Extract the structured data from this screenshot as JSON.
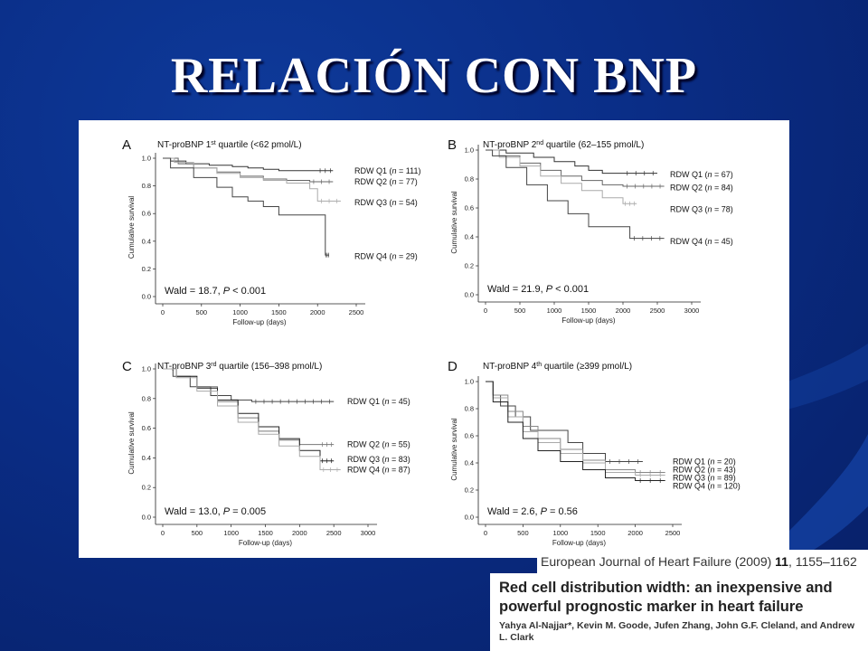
{
  "slide": {
    "title": "RELACIÓN CON BNP",
    "accent": "#0a2d86"
  },
  "citation": {
    "journal_name": "European Journal of Heart Failure",
    "journal_year": "(2009)",
    "journal_volume": "11",
    "journal_pages": ", 1155–1162",
    "paper_title": "Red cell distribution width: an inexpensive and powerful prognostic marker in heart failure",
    "authors": "Yahya Al-Najjar*, Kevin M. Goode, Jufen Zhang, John G.F. Cleland, and Andrew L. Clark"
  },
  "chart_data": [
    {
      "type": "line",
      "panel": "A",
      "title": "NT-proBNP 1st quartile (<62 pmol/L)",
      "title_parts": [
        "NT-proBNP 1",
        "st",
        " quartile (<62 pmol/L)"
      ],
      "xlabel": "Follow-up (days)",
      "ylabel": "Cumulative survival",
      "xlim": [
        0,
        2500
      ],
      "ylim": [
        0,
        1.0
      ],
      "xticks": [
        0,
        500,
        1000,
        1500,
        2000,
        2500
      ],
      "yticks": [
        0.0,
        0.2,
        0.4,
        0.6,
        0.8,
        1.0
      ],
      "annotation_parts": [
        "Wald = 18.7, ",
        "P",
        " < 0.001"
      ],
      "series": [
        {
          "name": "RDW Q1 (n = 111)",
          "label_parts": [
            "RDW Q1 (",
            "n",
            " = 111)"
          ],
          "color": "#333333",
          "x": [
            0,
            100,
            300,
            600,
            900,
            1100,
            1300,
            1500,
            2000,
            2200
          ],
          "y": [
            1.0,
            0.98,
            0.96,
            0.95,
            0.94,
            0.93,
            0.92,
            0.91,
            0.91,
            0.91
          ]
        },
        {
          "name": "RDW Q2 (n = 77)",
          "label_parts": [
            "RDW Q2 (",
            "n",
            " = 77)"
          ],
          "color": "#666666",
          "x": [
            0,
            200,
            400,
            700,
            1000,
            1300,
            1600,
            1900,
            2200
          ],
          "y": [
            1.0,
            0.96,
            0.93,
            0.9,
            0.87,
            0.85,
            0.84,
            0.83,
            0.83
          ]
        },
        {
          "name": "RDW Q3 (n = 54)",
          "label_parts": [
            "RDW Q3 (",
            "n",
            " = 54)"
          ],
          "color": "#aaaaaa",
          "x": [
            0,
            150,
            400,
            700,
            1000,
            1300,
            1600,
            1900,
            2000,
            2300
          ],
          "y": [
            1.0,
            0.97,
            0.93,
            0.89,
            0.86,
            0.84,
            0.82,
            0.78,
            0.69,
            0.69
          ]
        },
        {
          "name": "RDW Q4 (n = 29)",
          "label_parts": [
            "RDW Q4 (",
            "n",
            " = 29)"
          ],
          "color": "#444444",
          "x": [
            0,
            100,
            400,
            700,
            900,
            1100,
            1300,
            1500,
            1800,
            2100,
            2100,
            2150
          ],
          "y": [
            1.0,
            0.93,
            0.86,
            0.79,
            0.72,
            0.69,
            0.65,
            0.59,
            0.59,
            0.59,
            0.3,
            0.3
          ]
        }
      ],
      "label_y": [
        0.91,
        0.83,
        0.68,
        0.29
      ]
    },
    {
      "type": "line",
      "panel": "B",
      "title": "NT-proBNP 2nd quartile (62–155 pmol/L)",
      "title_parts": [
        "NT-proBNP 2",
        "nd",
        " quartile (62–155 pmol/L)"
      ],
      "xlabel": "Follow-up (days)",
      "ylabel": "Cumulative survival",
      "xlim": [
        0,
        3000
      ],
      "ylim": [
        0,
        1.0
      ],
      "xticks": [
        0,
        500,
        1000,
        1500,
        2000,
        2500,
        3000
      ],
      "yticks": [
        0.0,
        0.2,
        0.4,
        0.6,
        0.8,
        1.0
      ],
      "annotation_parts": [
        "Wald = 21.9, ",
        "P",
        " < 0.001"
      ],
      "series": [
        {
          "name": "RDW Q1 (n = 67)",
          "label_parts": [
            "RDW Q1 (",
            "n",
            " = 67)"
          ],
          "color": "#333333",
          "x": [
            0,
            300,
            700,
            1000,
            1300,
            1500,
            1700,
            2000,
            2500
          ],
          "y": [
            1.0,
            0.98,
            0.95,
            0.92,
            0.89,
            0.86,
            0.84,
            0.84,
            0.84
          ]
        },
        {
          "name": "RDW Q2 (n = 84)",
          "label_parts": [
            "RDW Q2 (",
            "n",
            " = 84)"
          ],
          "color": "#666666",
          "x": [
            0,
            200,
            500,
            800,
            1100,
            1400,
            1700,
            2000,
            2600
          ],
          "y": [
            1.0,
            0.96,
            0.91,
            0.86,
            0.82,
            0.79,
            0.76,
            0.75,
            0.75
          ]
        },
        {
          "name": "RDW Q3 (n = 78)",
          "label_parts": [
            "RDW Q3 (",
            "n",
            " = 78)"
          ],
          "color": "#aaaaaa",
          "x": [
            0,
            200,
            500,
            800,
            1100,
            1400,
            1700,
            2000,
            2200
          ],
          "y": [
            1.0,
            0.95,
            0.89,
            0.82,
            0.77,
            0.72,
            0.67,
            0.63,
            0.63
          ]
        },
        {
          "name": "RDW Q4 (n = 45)",
          "label_parts": [
            "RDW Q4 (",
            "n",
            " = 45)"
          ],
          "color": "#444444",
          "x": [
            0,
            100,
            300,
            600,
            900,
            1200,
            1500,
            1800,
            2100,
            2100,
            2600
          ],
          "y": [
            1.0,
            0.96,
            0.88,
            0.76,
            0.65,
            0.56,
            0.47,
            0.47,
            0.47,
            0.39,
            0.39
          ]
        }
      ],
      "label_y": [
        0.83,
        0.74,
        0.59,
        0.37
      ]
    },
    {
      "type": "line",
      "panel": "C",
      "title": "NT-proBNP 3rd quartile (156–398 pmol/L)",
      "title_parts": [
        "NT-proBNP 3",
        "rd",
        " quartile (156–398 pmol/L)"
      ],
      "xlabel": "Follow-up (days)",
      "ylabel": "Cumulative survival",
      "xlim": [
        0,
        3000
      ],
      "ylim": [
        0,
        1.0
      ],
      "xticks": [
        0,
        500,
        1000,
        1500,
        2000,
        2500,
        3000
      ],
      "yticks": [
        0.0,
        0.2,
        0.4,
        0.6,
        0.8,
        1.0
      ],
      "annotation_parts": [
        "Wald = 13.0, ",
        "P",
        " = 0.005"
      ],
      "series": [
        {
          "name": "RDW Q1 (n = 45)",
          "label_parts": [
            "RDW Q1 (",
            "n",
            " = 45)"
          ],
          "color": "#444444",
          "x": [
            0,
            150,
            400,
            700,
            1000,
            1300,
            2500
          ],
          "y": [
            1.0,
            0.95,
            0.88,
            0.82,
            0.79,
            0.78,
            0.78
          ]
        },
        {
          "name": "RDW Q2 (n = 55)",
          "label_parts": [
            "RDW Q2 (",
            "n",
            " = 55)"
          ],
          "color": "#777777",
          "x": [
            0,
            200,
            500,
            800,
            1100,
            1400,
            1700,
            2000,
            2300,
            2500
          ],
          "y": [
            1.0,
            0.95,
            0.88,
            0.78,
            0.67,
            0.58,
            0.52,
            0.49,
            0.49,
            0.49
          ]
        },
        {
          "name": "RDW Q3 (n = 83)",
          "label_parts": [
            "RDW Q3 (",
            "n",
            " = 83)"
          ],
          "color": "#222222",
          "x": [
            0,
            200,
            500,
            800,
            1100,
            1400,
            1700,
            2000,
            2300,
            2500
          ],
          "y": [
            1.0,
            0.95,
            0.87,
            0.79,
            0.7,
            0.61,
            0.53,
            0.45,
            0.38,
            0.38
          ]
        },
        {
          "name": "RDW Q4 (n = 87)",
          "label_parts": [
            "RDW Q4 (",
            "n",
            " = 87)"
          ],
          "color": "#aaaaaa",
          "x": [
            0,
            200,
            500,
            800,
            1100,
            1400,
            1700,
            2000,
            2300,
            2600
          ],
          "y": [
            1.0,
            0.94,
            0.85,
            0.75,
            0.64,
            0.56,
            0.48,
            0.41,
            0.32,
            0.32
          ]
        }
      ],
      "label_y": [
        0.78,
        0.49,
        0.39,
        0.32
      ]
    },
    {
      "type": "line",
      "panel": "D",
      "title": "NT-proBNP 4th quartile (≥399 pmol/L)",
      "title_parts": [
        "NT-proBNP 4",
        "th",
        " quartile (≥399 pmol/L)"
      ],
      "xlabel": "Follow-up (days)",
      "ylabel": "Cumulative survival",
      "xlim": [
        0,
        2500
      ],
      "ylim": [
        0,
        1.0
      ],
      "xticks": [
        0,
        500,
        1000,
        1500,
        2000,
        2500
      ],
      "yticks": [
        0.0,
        0.2,
        0.4,
        0.6,
        0.8,
        1.0
      ],
      "annotation_parts": [
        "Wald = 2.6, ",
        "P",
        " = 0.56"
      ],
      "series": [
        {
          "name": "RDW Q1 (n = 20)",
          "label_parts": [
            "RDW Q1 (",
            "n",
            " = 20)"
          ],
          "color": "#444444",
          "x": [
            0,
            100,
            200,
            400,
            600,
            900,
            1100,
            1300,
            1600,
            2100
          ],
          "y": [
            1.0,
            0.9,
            0.82,
            0.74,
            0.64,
            0.64,
            0.55,
            0.47,
            0.41,
            0.41
          ]
        },
        {
          "name": "RDW Q2 (n = 43)",
          "label_parts": [
            "RDW Q2 (",
            "n",
            " = 43)"
          ],
          "color": "#888888",
          "x": [
            0,
            100,
            300,
            500,
            700,
            1000,
            1300,
            1600,
            2000,
            2400
          ],
          "y": [
            1.0,
            0.9,
            0.78,
            0.67,
            0.58,
            0.5,
            0.42,
            0.35,
            0.33,
            0.33
          ]
        },
        {
          "name": "RDW Q3 (n = 89)",
          "label_parts": [
            "RDW Q3 (",
            "n",
            " = 89)"
          ],
          "color": "#aaaaaa",
          "x": [
            0,
            100,
            300,
            500,
            700,
            1000,
            1300,
            1600,
            2000,
            2400
          ],
          "y": [
            1.0,
            0.88,
            0.74,
            0.63,
            0.55,
            0.47,
            0.4,
            0.33,
            0.31,
            0.31
          ]
        },
        {
          "name": "RDW Q4 (n = 120)",
          "label_parts": [
            "RDW Q4 (",
            "n",
            " = 120)"
          ],
          "color": "#222222",
          "x": [
            0,
            100,
            300,
            500,
            700,
            1000,
            1300,
            1600,
            2000,
            2400
          ],
          "y": [
            1.0,
            0.85,
            0.7,
            0.58,
            0.49,
            0.41,
            0.35,
            0.29,
            0.27,
            0.27
          ]
        }
      ],
      "label_y": [
        0.41,
        0.35,
        0.29,
        0.23
      ]
    }
  ]
}
